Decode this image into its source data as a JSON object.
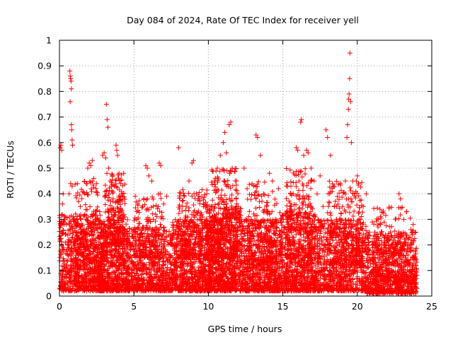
{
  "chart_data": {
    "type": "scatter",
    "title": "Day 084 of 2024, Rate Of TEC Index for receiver yell",
    "xlabel": "GPS time / hours",
    "ylabel": "ROTI / TECUs",
    "xlim": [
      0,
      25
    ],
    "ylim": [
      0,
      1
    ],
    "grid": true,
    "marker": "+",
    "marker_color": "#ff0000",
    "x_ticks": [
      {
        "value": 0,
        "label": "0"
      },
      {
        "value": 5,
        "label": "5"
      },
      {
        "value": 10,
        "label": "10"
      },
      {
        "value": 15,
        "label": "15"
      },
      {
        "value": 20,
        "label": "20"
      },
      {
        "value": 25,
        "label": "25"
      }
    ],
    "y_ticks": [
      {
        "value": 0,
        "label": "0"
      },
      {
        "value": 0.1,
        "label": "0.1"
      },
      {
        "value": 0.2,
        "label": "0.2"
      },
      {
        "value": 0.3,
        "label": "0.3"
      },
      {
        "value": 0.4,
        "label": "0.4"
      },
      {
        "value": 0.5,
        "label": "0.5"
      },
      {
        "value": 0.6,
        "label": "0.6"
      },
      {
        "value": 0.7,
        "label": "0.7"
      },
      {
        "value": 0.8,
        "label": "0.8"
      },
      {
        "value": 0.9,
        "label": "0.9"
      },
      {
        "value": 1,
        "label": "1"
      }
    ],
    "series": [
      {
        "name": "ROTI",
        "points": [
          [
            0.05,
            0.58
          ],
          [
            0.1,
            0.59
          ],
          [
            0.15,
            0.57
          ],
          [
            0.2,
            0.36
          ],
          [
            0.25,
            0.4
          ],
          [
            0.3,
            0.28
          ],
          [
            0.35,
            0.3
          ],
          [
            0.45,
            0.1
          ],
          [
            0.55,
            0.05
          ],
          [
            0.6,
            0.2
          ],
          [
            0.65,
            0.4
          ],
          [
            0.7,
            0.88
          ],
          [
            0.72,
            0.86
          ],
          [
            0.75,
            0.85
          ],
          [
            0.78,
            0.84
          ],
          [
            0.8,
            0.81
          ],
          [
            0.72,
            0.76
          ],
          [
            0.8,
            0.67
          ],
          [
            0.82,
            0.65
          ],
          [
            0.85,
            0.61
          ],
          [
            0.88,
            0.59
          ],
          [
            0.75,
            0.44
          ],
          [
            0.85,
            0.43
          ],
          [
            0.9,
            0.3
          ],
          [
            1.0,
            0.2
          ],
          [
            1.1,
            0.15
          ],
          [
            1.2,
            0.3
          ],
          [
            1.3,
            0.08
          ],
          [
            1.4,
            0.35
          ],
          [
            1.5,
            0.25
          ],
          [
            1.6,
            0.12
          ],
          [
            1.7,
            0.4
          ],
          [
            1.8,
            0.44
          ],
          [
            1.9,
            0.5
          ],
          [
            2.0,
            0.52
          ],
          [
            2.1,
            0.51
          ],
          [
            2.2,
            0.53
          ],
          [
            2.3,
            0.46
          ],
          [
            2.4,
            0.3
          ],
          [
            2.5,
            0.2
          ],
          [
            2.6,
            0.15
          ],
          [
            2.7,
            0.33
          ],
          [
            2.8,
            0.25
          ],
          [
            2.9,
            0.55
          ],
          [
            3.0,
            0.56
          ],
          [
            3.1,
            0.54
          ],
          [
            3.15,
            0.75
          ],
          [
            3.2,
            0.69
          ],
          [
            3.25,
            0.66
          ],
          [
            3.3,
            0.5
          ],
          [
            3.4,
            0.45
          ],
          [
            3.5,
            0.32
          ],
          [
            3.6,
            0.38
          ],
          [
            3.7,
            0.43
          ],
          [
            3.8,
            0.59
          ],
          [
            3.85,
            0.57
          ],
          [
            3.9,
            0.55
          ],
          [
            4.0,
            0.48
          ],
          [
            4.1,
            0.44
          ],
          [
            4.2,
            0.4
          ],
          [
            4.3,
            0.3
          ],
          [
            4.5,
            0.2
          ],
          [
            4.7,
            0.15
          ],
          [
            4.9,
            0.1
          ],
          [
            5.2,
            0.3
          ],
          [
            5.4,
            0.22
          ],
          [
            5.6,
            0.12
          ],
          [
            5.8,
            0.51
          ],
          [
            5.9,
            0.5
          ],
          [
            6.0,
            0.47
          ],
          [
            6.2,
            0.45
          ],
          [
            6.3,
            0.3
          ],
          [
            6.5,
            0.15
          ],
          [
            6.7,
            0.52
          ],
          [
            6.8,
            0.51
          ],
          [
            7.0,
            0.36
          ],
          [
            7.2,
            0.39
          ],
          [
            7.5,
            0.1
          ],
          [
            7.8,
            0.2
          ],
          [
            8.0,
            0.58
          ],
          [
            8.1,
            0.3
          ],
          [
            8.3,
            0.25
          ],
          [
            8.5,
            0.35
          ],
          [
            8.7,
            0.45
          ],
          [
            8.9,
            0.52
          ],
          [
            9.0,
            0.53
          ],
          [
            9.2,
            0.4
          ],
          [
            9.4,
            0.3
          ],
          [
            9.6,
            0.2
          ],
          [
            9.8,
            0.1
          ],
          [
            10.0,
            0.25
          ],
          [
            10.2,
            0.35
          ],
          [
            10.4,
            0.45
          ],
          [
            10.6,
            0.5
          ],
          [
            10.8,
            0.55
          ],
          [
            11.0,
            0.6
          ],
          [
            11.1,
            0.64
          ],
          [
            11.2,
            0.56
          ],
          [
            11.4,
            0.67
          ],
          [
            11.5,
            0.68
          ],
          [
            11.6,
            0.5
          ],
          [
            11.8,
            0.45
          ],
          [
            12.0,
            0.35
          ],
          [
            12.2,
            0.3
          ],
          [
            12.4,
            0.5
          ],
          [
            12.6,
            0.42
          ],
          [
            12.8,
            0.25
          ],
          [
            13.0,
            0.2
          ],
          [
            13.2,
            0.63
          ],
          [
            13.3,
            0.62
          ],
          [
            13.5,
            0.55
          ],
          [
            13.7,
            0.4
          ],
          [
            13.9,
            0.35
          ],
          [
            14.1,
            0.48
          ],
          [
            14.3,
            0.45
          ],
          [
            14.5,
            0.3
          ],
          [
            14.7,
            0.42
          ],
          [
            14.9,
            0.2
          ],
          [
            15.1,
            0.25
          ],
          [
            15.3,
            0.3
          ],
          [
            15.5,
            0.35
          ],
          [
            15.7,
            0.4
          ],
          [
            15.9,
            0.58
          ],
          [
            16.0,
            0.57
          ],
          [
            16.1,
            0.45
          ],
          [
            16.2,
            0.68
          ],
          [
            16.25,
            0.69
          ],
          [
            16.4,
            0.55
          ],
          [
            16.6,
            0.57
          ],
          [
            16.7,
            0.56
          ],
          [
            16.9,
            0.5
          ],
          [
            17.1,
            0.45
          ],
          [
            17.3,
            0.4
          ],
          [
            17.5,
            0.47
          ],
          [
            17.7,
            0.35
          ],
          [
            17.9,
            0.65
          ],
          [
            18.0,
            0.62
          ],
          [
            18.2,
            0.55
          ],
          [
            18.4,
            0.43
          ],
          [
            18.6,
            0.3
          ],
          [
            18.8,
            0.2
          ],
          [
            19.0,
            0.35
          ],
          [
            19.2,
            0.45
          ],
          [
            19.3,
            0.62
          ],
          [
            19.35,
            0.67
          ],
          [
            19.4,
            0.73
          ],
          [
            19.42,
            0.77
          ],
          [
            19.45,
            0.79
          ],
          [
            19.48,
            0.85
          ],
          [
            19.5,
            0.95
          ],
          [
            19.55,
            0.76
          ],
          [
            19.6,
            0.6
          ],
          [
            19.7,
            0.45
          ],
          [
            19.8,
            0.4
          ],
          [
            20.0,
            0.47
          ],
          [
            20.2,
            0.3
          ],
          [
            20.4,
            0.35
          ],
          [
            20.6,
            0.4
          ],
          [
            20.8,
            0.25
          ],
          [
            21.0,
            0.2
          ],
          [
            21.2,
            0.15
          ],
          [
            21.4,
            0.3
          ],
          [
            21.6,
            0.25
          ],
          [
            21.8,
            0.18
          ],
          [
            22.0,
            0.22
          ],
          [
            22.2,
            0.15
          ],
          [
            22.4,
            0.12
          ],
          [
            22.6,
            0.2
          ],
          [
            22.8,
            0.4
          ],
          [
            22.9,
            0.38
          ],
          [
            23.0,
            0.1
          ],
          [
            23.2,
            0.08
          ],
          [
            23.4,
            0.12
          ],
          [
            23.6,
            0.26
          ],
          [
            23.7,
            0.24
          ],
          [
            23.8,
            0.15
          ],
          [
            23.9,
            0.05
          ],
          [
            24.0,
            0.03
          ]
        ],
        "bands": [
          {
            "x": [
              0.0,
              3.0
            ],
            "y": [
              0.02,
              0.32
            ],
            "n": 700
          },
          {
            "x": [
              1.0,
              2.6
            ],
            "y": [
              0.05,
              0.45
            ],
            "n": 220
          },
          {
            "x": [
              2.6,
              4.6
            ],
            "y": [
              0.02,
              0.3
            ],
            "n": 620
          },
          {
            "x": [
              3.0,
              4.4
            ],
            "y": [
              0.2,
              0.48
            ],
            "n": 200
          },
          {
            "x": [
              4.5,
              7.6
            ],
            "y": [
              0.02,
              0.27
            ],
            "n": 720
          },
          {
            "x": [
              5.0,
              7.0
            ],
            "y": [
              0.15,
              0.4
            ],
            "n": 140
          },
          {
            "x": [
              7.6,
              10.2
            ],
            "y": [
              0.02,
              0.3
            ],
            "n": 720
          },
          {
            "x": [
              8.0,
              10.0
            ],
            "y": [
              0.15,
              0.42
            ],
            "n": 220
          },
          {
            "x": [
              10.0,
              12.2
            ],
            "y": [
              0.02,
              0.35
            ],
            "n": 760
          },
          {
            "x": [
              10.2,
              12.0
            ],
            "y": [
              0.15,
              0.5
            ],
            "n": 260
          },
          {
            "x": [
              12.2,
              14.8
            ],
            "y": [
              0.02,
              0.3
            ],
            "n": 720
          },
          {
            "x": [
              12.6,
              14.6
            ],
            "y": [
              0.12,
              0.45
            ],
            "n": 180
          },
          {
            "x": [
              14.8,
              17.3
            ],
            "y": [
              0.02,
              0.33
            ],
            "n": 700
          },
          {
            "x": [
              15.2,
              17.0
            ],
            "y": [
              0.15,
              0.5
            ],
            "n": 220
          },
          {
            "x": [
              17.3,
              20.6
            ],
            "y": [
              0.02,
              0.3
            ],
            "n": 760
          },
          {
            "x": [
              18.0,
              20.4
            ],
            "y": [
              0.12,
              0.45
            ],
            "n": 240
          },
          {
            "x": [
              20.6,
              24.0
            ],
            "y": [
              0.01,
              0.25
            ],
            "n": 800
          },
          {
            "x": [
              21.0,
              23.8
            ],
            "y": [
              0.05,
              0.35
            ],
            "n": 160
          }
        ]
      }
    ]
  }
}
